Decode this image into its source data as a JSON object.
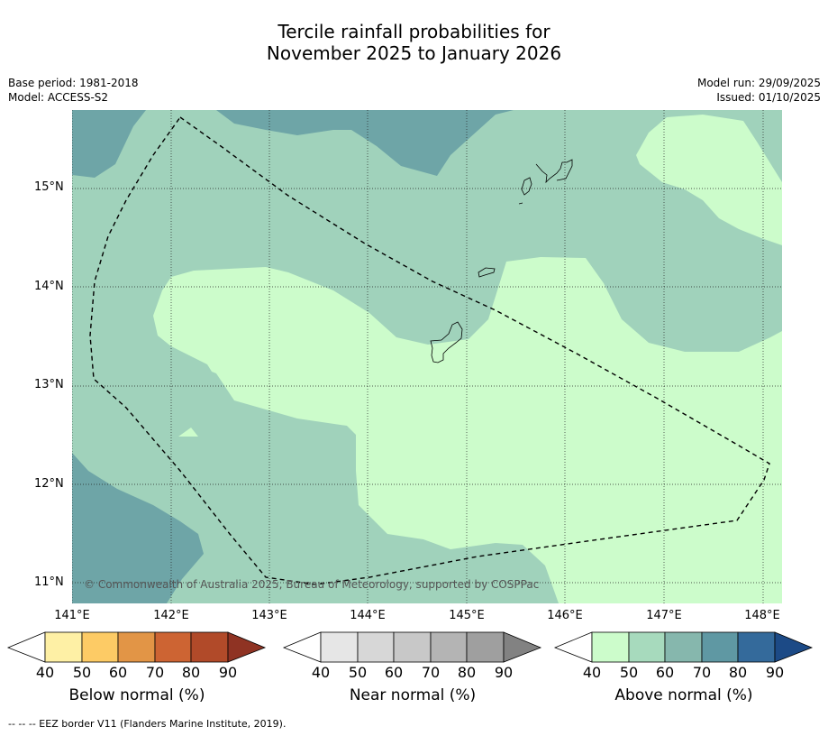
{
  "title_line1": "Tercile rainfall probabilities for",
  "title_line2": "November 2025 to January 2026",
  "left_meta": {
    "base_period": "Base period: 1981-2018",
    "model": "Model: ACCESS-S2"
  },
  "right_meta": {
    "model_run": "Model run: 29/09/2025",
    "issued": "Issued: 01/10/2025"
  },
  "lat_labels": [
    "15°N",
    "14°N",
    "13°N",
    "12°N",
    "11°N"
  ],
  "lon_labels": [
    "141°E",
    "142°E",
    "143°E",
    "144°E",
    "145°E",
    "146°E",
    "147°E",
    "148°E"
  ],
  "copyright": "© Commonwealth of Australia 2025, Bureau of Meteorology, supported by COSPPac",
  "colorbars": {
    "below": {
      "label": "Below normal (%)",
      "ticks": [
        "40",
        "50",
        "60",
        "70",
        "80",
        "90"
      ],
      "colors": [
        "#fef0a5",
        "#fdcb65",
        "#e29546",
        "#cd6433",
        "#b14a29",
        "#8f3323"
      ]
    },
    "near": {
      "label": "Near normal (%)",
      "ticks": [
        "40",
        "50",
        "60",
        "70",
        "80",
        "90"
      ],
      "colors": [
        "#e6e6e6",
        "#d7d7d7",
        "#c8c8c8",
        "#b4b4b4",
        "#9f9f9f",
        "#828282"
      ]
    },
    "above": {
      "label": "Above normal (%)",
      "ticks": [
        "40",
        "50",
        "60",
        "70",
        "80",
        "90"
      ],
      "colors": [
        "#ccfccb",
        "#a7dabd",
        "#86b7ad",
        "#5f98a3",
        "#346a9b",
        "#1c4a86"
      ]
    }
  },
  "map_colors": {
    "light": "#ccfccb",
    "mid": "#a0d2bb",
    "dark": "#6ea5a7"
  },
  "footer": "--  --  -- EEZ border V11 (Flanders Marine Institute, 2019)."
}
